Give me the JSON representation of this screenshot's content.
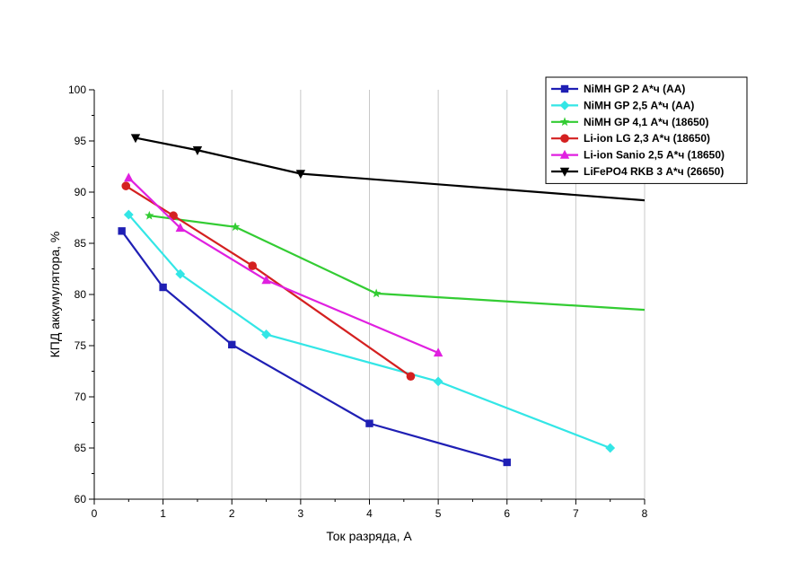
{
  "chart_data": {
    "type": "line",
    "title": "",
    "xlabel": "Ток разряда, А",
    "ylabel": "КПД аккумулятора, %",
    "xlim": [
      0,
      8
    ],
    "ylim": [
      60,
      100
    ],
    "x_ticks": [
      "0",
      "1",
      "2",
      "3",
      "4",
      "5",
      "6",
      "7",
      "8"
    ],
    "y_ticks": [
      "60",
      "65",
      "70",
      "75",
      "80",
      "85",
      "90",
      "95",
      "100"
    ],
    "grid": "vertical",
    "legend_position": "top-right",
    "series": [
      {
        "name": "NiMH GP 2 А*ч (АА)",
        "color": "#1f1fb4",
        "marker": "square",
        "x": [
          0.4,
          1.0,
          2.0,
          4.0,
          6.0
        ],
        "y": [
          86.2,
          80.7,
          75.1,
          67.4,
          63.6
        ]
      },
      {
        "name": "NiMH GP 2,5 А*ч (АА)",
        "color": "#33e6e6",
        "marker": "diamond",
        "x": [
          0.5,
          1.25,
          2.5,
          5.0,
          7.5
        ],
        "y": [
          87.8,
          82.0,
          76.1,
          71.5,
          65.0
        ]
      },
      {
        "name": "NiMH GP 4,1 А*ч (18650)",
        "color": "#33cc33",
        "marker": "star",
        "x": [
          0.8,
          2.05,
          4.1,
          8.0
        ],
        "y": [
          87.7,
          86.6,
          80.1,
          78.5
        ]
      },
      {
        "name": "Li-ion LG 2,3 А*ч (18650)",
        "color": "#d42020",
        "marker": "circle",
        "x": [
          0.46,
          1.15,
          2.3,
          4.6
        ],
        "y": [
          90.6,
          87.7,
          82.8,
          72.0
        ]
      },
      {
        "name": "Li-ion Sanio 2,5 А*ч (18650)",
        "color": "#e020e0",
        "marker": "triangle-up",
        "x": [
          0.5,
          1.25,
          2.5,
          5.0
        ],
        "y": [
          91.4,
          86.5,
          81.4,
          74.3
        ]
      },
      {
        "name": "LiFePO4 RKB 3 А*ч (26650)",
        "color": "#000000",
        "marker": "triangle-down",
        "x": [
          0.6,
          1.5,
          3.0,
          8.0
        ],
        "y": [
          95.3,
          94.1,
          91.8,
          89.2
        ]
      }
    ]
  }
}
